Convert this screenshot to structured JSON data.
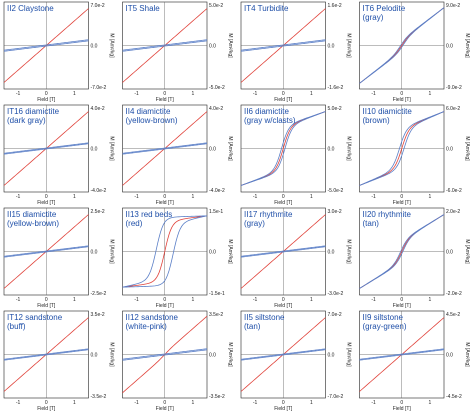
{
  "colors": {
    "initial": "#e0423a",
    "loop": "#5b7fc7",
    "title": "#1f4fa8",
    "axis": "#222222"
  },
  "x_axis": {
    "label": "Field [T]",
    "ticks": [
      "-1",
      "0",
      "1"
    ]
  },
  "y_axis_label": "M [Am²/kg]",
  "chart_data": [
    {
      "type": "line",
      "title": "II2 Claystone",
      "shape": "paramagnetic",
      "ylim_label": "7.0e-2",
      "ymin_label": "-7.0e-2",
      "zero_label": "0.0",
      "slope": 0.85,
      "loop_height": 0.05,
      "sat": 0.0,
      "xlim": [
        -1.5,
        1.5
      ]
    },
    {
      "type": "line",
      "title": "IT5 Shale",
      "shape": "paramagnetic",
      "ylim_label": "5.0e-2",
      "ymin_label": "-5.0e-2",
      "zero_label": "0.0",
      "slope": 0.85,
      "loop_height": 0.05,
      "sat": 0.0,
      "xlim": [
        -1.5,
        1.5
      ]
    },
    {
      "type": "line",
      "title": "IT4 Turbidite",
      "shape": "paramagnetic",
      "ylim_label": "1.6e-2",
      "ymin_label": "-1.6e-2",
      "zero_label": "0.0",
      "slope": 0.85,
      "loop_height": 0.05,
      "sat": 0.0,
      "xlim": [
        -1.5,
        1.5
      ]
    },
    {
      "type": "line",
      "title": "IT6 Pelodite (gray)",
      "title_lines": [
        "IT6 Pelodite",
        "(gray)"
      ],
      "shape": "mixed",
      "ylim_label": "9.0e-2",
      "ymin_label": "-9.0e-2",
      "zero_label": "0.0",
      "slope": 0.75,
      "loop_height": 0.05,
      "sat": 0.12,
      "xlim": [
        -1.5,
        1.5
      ]
    },
    {
      "type": "line",
      "title": "IT16 diamictite (dark gray)",
      "title_lines": [
        "IT16 diamictite",
        "(dark gray)"
      ],
      "shape": "paramagnetic",
      "ylim_label": "4.0e-2",
      "ymin_label": "-4.0e-2",
      "zero_label": "0.0",
      "slope": 0.85,
      "loop_height": 0.04,
      "sat": 0.0,
      "xlim": [
        -1.5,
        1.5
      ]
    },
    {
      "type": "line",
      "title": "II4 diamictite (yellow-brown)",
      "title_lines": [
        "II4 diamictite",
        "(yellow-brown)"
      ],
      "shape": "paramagnetic",
      "ylim_label": "4.0e-2",
      "ymin_label": "-4.0e-2",
      "zero_label": "0.0",
      "slope": 0.85,
      "loop_height": 0.04,
      "sat": 0.0,
      "xlim": [
        -1.5,
        1.5
      ]
    },
    {
      "type": "line",
      "title": "II6 diamictite (gray w/clasts)",
      "title_lines": [
        "II6 diamictite",
        "(gray w/clasts)"
      ],
      "shape": "ferro",
      "ylim_label": "5.0e-2",
      "ymin_label": "-5.0e-2",
      "zero_label": "0.0",
      "slope": 0.35,
      "loop_height": 0.06,
      "sat": 0.5,
      "xlim": [
        -1.5,
        1.5
      ]
    },
    {
      "type": "line",
      "title": "II10 diamictite (brown)",
      "title_lines": [
        "II10 diamictite",
        "(brown)"
      ],
      "shape": "ferro",
      "ylim_label": "6.0e-2",
      "ymin_label": "-6.0e-2",
      "zero_label": "0.0",
      "slope": 0.4,
      "loop_height": 0.08,
      "sat": 0.45,
      "xlim": [
        -1.5,
        1.5
      ]
    },
    {
      "type": "line",
      "title": "II15 diamictite (yellow-brown)",
      "title_lines": [
        "II15 diamictite",
        "(yellow-brown)"
      ],
      "shape": "paramagnetic",
      "ylim_label": "2.5e-2",
      "ymin_label": "-2.5e-2",
      "zero_label": "0.0",
      "slope": 0.85,
      "loop_height": 0.04,
      "sat": 0.0,
      "xlim": [
        -1.5,
        1.5
      ]
    },
    {
      "type": "line",
      "title": "II13 red beds (red)",
      "title_lines": [
        "II13 red beds",
        "(red)"
      ],
      "shape": "wide",
      "ylim_label": "1.5e-1",
      "ymin_label": "-1.5e-1",
      "zero_label": "0.0",
      "slope": 0.12,
      "loop_height": 0.3,
      "sat": 0.7,
      "xlim": [
        -1.5,
        1.5
      ]
    },
    {
      "type": "line",
      "title": "II17 rhythmite (gray)",
      "title_lines": [
        "II17 rhythmite",
        "(gray)"
      ],
      "shape": "paramagnetic",
      "ylim_label": "3.0e-2",
      "ymin_label": "-3.0e-2",
      "zero_label": "0.0",
      "slope": 0.85,
      "loop_height": 0.04,
      "sat": 0.0,
      "xlim": [
        -1.5,
        1.5
      ]
    },
    {
      "type": "line",
      "title": "II20 rhythmite (tan)",
      "title_lines": [
        "II20 rhythmite",
        "(tan)"
      ],
      "shape": "mixed",
      "ylim_label": "2.0e-2",
      "ymin_label": "-2.0e-2",
      "zero_label": "0.0",
      "slope": 0.6,
      "loop_height": 0.04,
      "sat": 0.25,
      "xlim": [
        -1.5,
        1.5
      ]
    },
    {
      "type": "line",
      "title": "IT12 sandstone (buff)",
      "title_lines": [
        "IT12 sandstone",
        "(buff)"
      ],
      "shape": "paramagnetic",
      "ylim_label": "3.5e-2",
      "ymin_label": "-3.5e-2",
      "zero_label": "0.0",
      "slope": 0.85,
      "loop_height": 0.04,
      "sat": 0.0,
      "xlim": [
        -1.5,
        1.5
      ]
    },
    {
      "type": "line",
      "title": "II12 sandstone (white-pink)",
      "title_lines": [
        "II12 sandstone",
        "(white-pink)"
      ],
      "shape": "paramagnetic",
      "ylim_label": "3.5e-2",
      "ymin_label": "-3.5e-2",
      "zero_label": "0.0",
      "slope": 0.85,
      "loop_height": 0.05,
      "sat": 0.03,
      "xlim": [
        -1.5,
        1.5
      ]
    },
    {
      "type": "line",
      "title": "II5 siltstone (tan)",
      "title_lines": [
        "II5 siltstone",
        "(tan)"
      ],
      "shape": "paramagnetic",
      "ylim_label": "7.0e-2",
      "ymin_label": "-7.0e-2",
      "zero_label": "0.0",
      "slope": 0.85,
      "loop_height": 0.04,
      "sat": 0.0,
      "xlim": [
        -1.5,
        1.5
      ]
    },
    {
      "type": "line",
      "title": "II9 siltstone (gray-green)",
      "title_lines": [
        "II9 siltstone",
        "(gray-green)"
      ],
      "shape": "paramagnetic",
      "ylim_label": "4.5e-2",
      "ymin_label": "-4.5e-2",
      "zero_label": "0.0",
      "slope": 0.85,
      "loop_height": 0.04,
      "sat": 0.0,
      "xlim": [
        -1.5,
        1.5
      ]
    }
  ]
}
